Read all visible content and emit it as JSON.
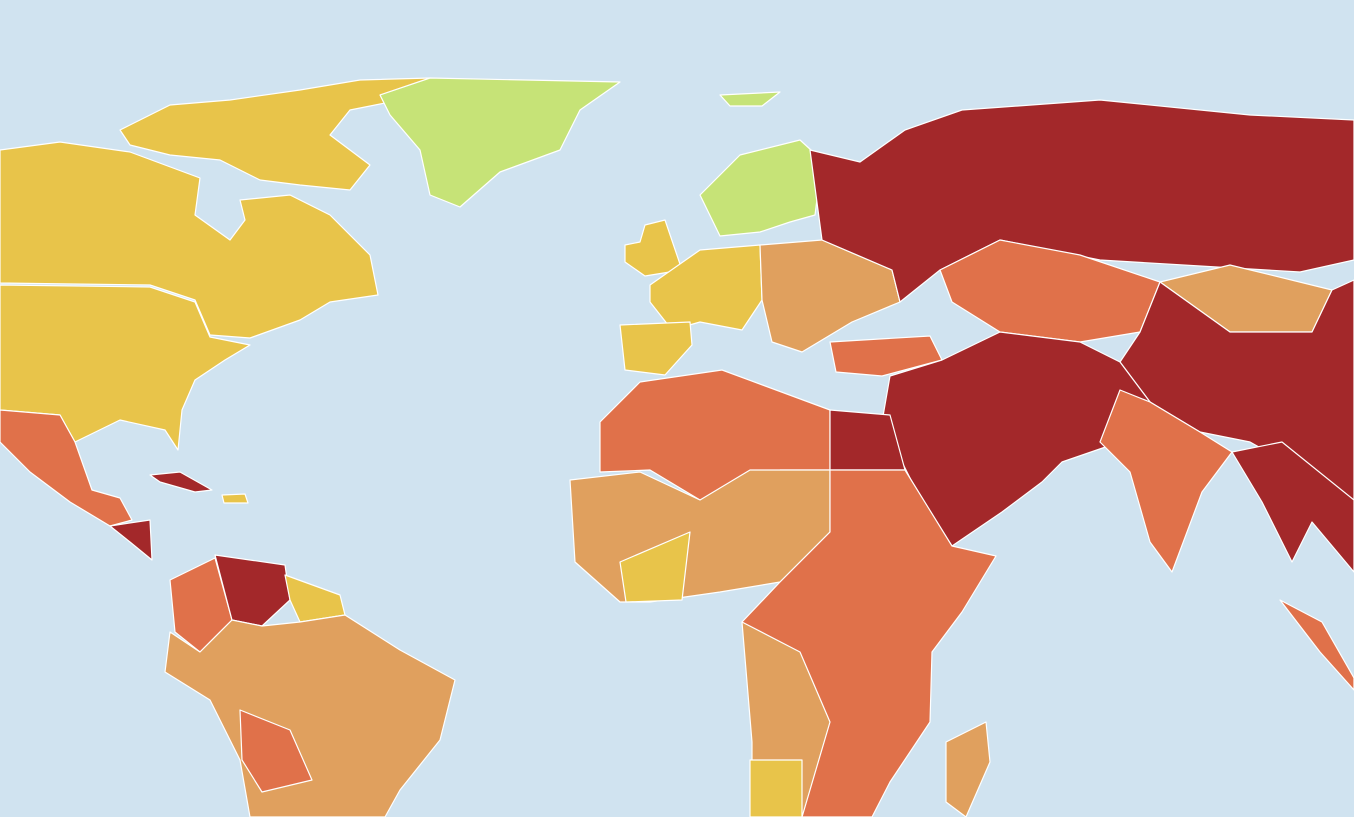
{
  "map": {
    "ocean": "#d0e3f0",
    "border": "#ffffff",
    "palette": [
      "#c6e377",
      "#e8c44a",
      "#e0a05e",
      "#e0714a",
      "#a3282a"
    ]
  }
}
